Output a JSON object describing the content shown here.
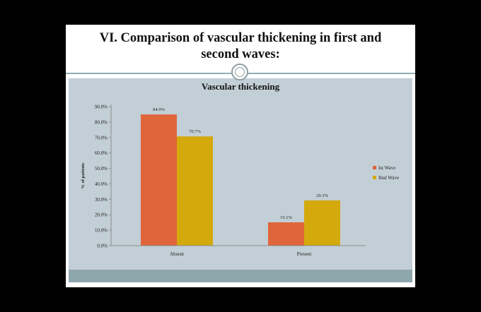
{
  "slide": {
    "title": "VI. Comparison of vascular thickening in first and\nsecond waves:"
  },
  "colors": {
    "background": "#000000",
    "slide": "#ffffff",
    "chart_panel": "#c3cfd6",
    "footer_band": "#8ea7ad",
    "series_1": "#e0653a",
    "series_2": "#d4a90c"
  },
  "chart_data": {
    "type": "bar",
    "title": "Vascular thickening",
    "xlabel": "",
    "ylabel": "% of patients",
    "categories": [
      "Absent",
      "Present"
    ],
    "series": [
      {
        "name": "Ist Wave",
        "values": [
          84.9,
          15.1
        ],
        "labels": [
          "84.9%",
          "15.1%"
        ],
        "color": "#e0653a"
      },
      {
        "name": "IInd Wave",
        "values": [
          70.7,
          29.3
        ],
        "labels": [
          "70.7%",
          "29.3%"
        ],
        "color": "#d4a90c"
      }
    ],
    "ylim": [
      0,
      90
    ],
    "yticks": [
      0,
      10,
      20,
      30,
      40,
      50,
      60,
      70,
      80,
      90
    ],
    "ytick_labels": [
      "0.0%",
      "10.0%",
      "20.0%",
      "30.0%",
      "40.0%",
      "50.0%",
      "60.0%",
      "70.0%",
      "80.0%",
      "90.0%"
    ],
    "grid": false,
    "legend_position": "right"
  }
}
